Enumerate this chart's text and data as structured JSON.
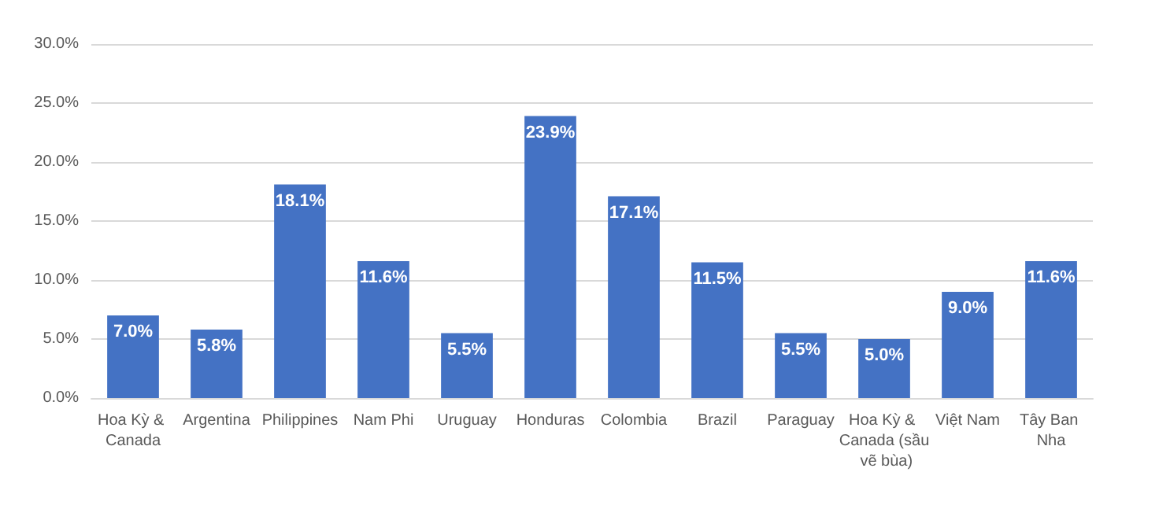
{
  "chart_data": {
    "type": "bar",
    "categories": [
      "Hoa Kỳ & Canada",
      "Argentina",
      "Philippines",
      "Nam Phi",
      "Uruguay",
      "Honduras",
      "Colombia",
      "Brazil",
      "Paraguay",
      "Hoa Kỳ & Canada (sầu vẽ bùa)",
      "Việt Nam",
      "Tây Ban Nha"
    ],
    "values": [
      7.0,
      5.8,
      18.1,
      11.6,
      5.5,
      23.9,
      17.1,
      11.5,
      5.5,
      5.0,
      9.0,
      11.6
    ],
    "value_labels": [
      "7.0%",
      "5.8%",
      "18.1%",
      "11.6%",
      "5.5%",
      "23.9%",
      "17.1%",
      "11.5%",
      "5.5%",
      "5.0%",
      "9.0%",
      "11.6%"
    ],
    "color": "#4472c4",
    "ylim": [
      0,
      30
    ],
    "yticks": [
      {
        "value": 0,
        "label": "0.0%"
      },
      {
        "value": 5,
        "label": "5.0%"
      },
      {
        "value": 10,
        "label": "10.0%"
      },
      {
        "value": 15,
        "label": "15.0%"
      },
      {
        "value": 20,
        "label": "20.0%"
      },
      {
        "value": 25,
        "label": "25.0%"
      },
      {
        "value": 30,
        "label": "30.0%"
      }
    ],
    "grid": "y"
  }
}
